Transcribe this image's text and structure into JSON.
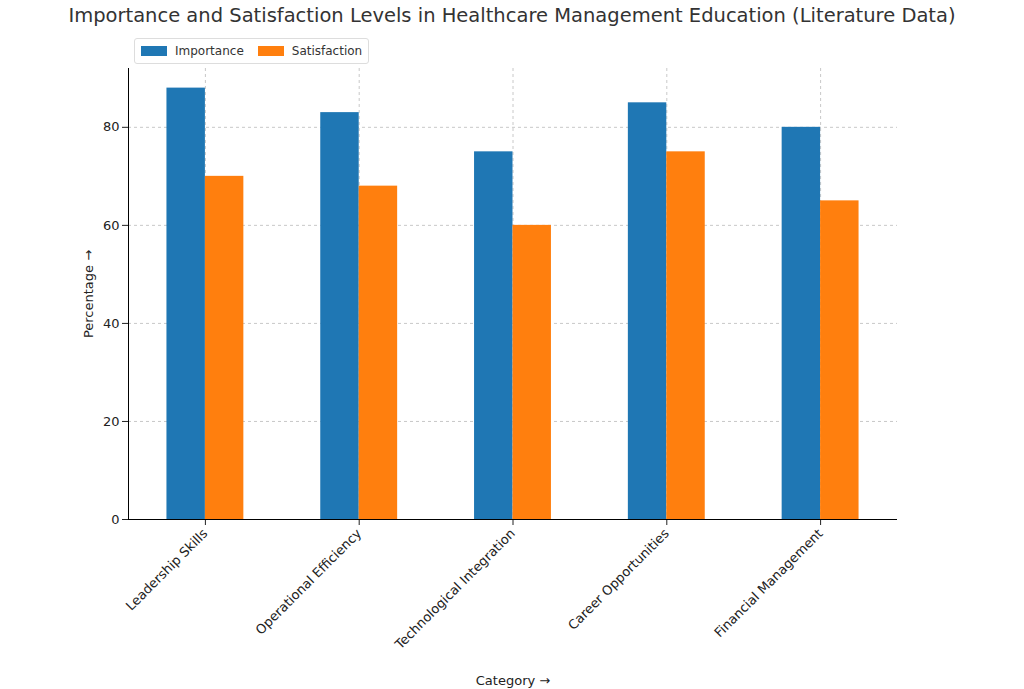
{
  "chart_data": {
    "type": "bar",
    "title": "Importance and Satisfaction Levels in Healthcare Management Education (Literature Data)",
    "xlabel": "Category",
    "ylabel": "Percentage",
    "categories": [
      "Leadership Skills",
      "Operational Efficiency",
      "Technological Integration",
      "Career Opportunities",
      "Financial Management"
    ],
    "series": [
      {
        "name": "Importance",
        "color": "#1f77b4",
        "values": [
          88,
          83,
          75,
          85,
          80
        ]
      },
      {
        "name": "Satisfaction",
        "color": "#ff7f0e",
        "values": [
          70,
          68,
          60,
          75,
          65
        ]
      }
    ],
    "ylim": [
      0,
      92
    ],
    "yticks": [
      0,
      20,
      40,
      60,
      80
    ],
    "grid": true,
    "legend": "upper left"
  }
}
